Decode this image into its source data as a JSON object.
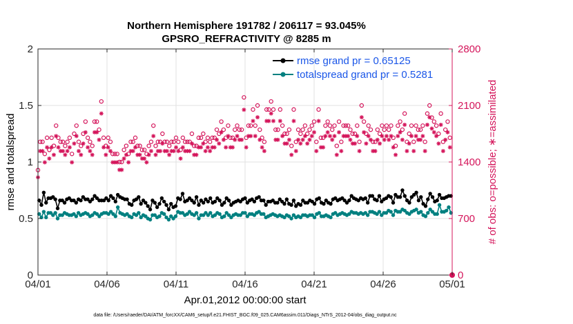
{
  "chart_data": {
    "type": "line",
    "title_line1": "Northern Hemisphere 191782 / 206117 = 93.045%",
    "title_line2": "GPSRO_REFRACTIVITY @ 8285 m",
    "ylabel_left": "rmse and totalspread",
    "ylabel_right": "# of obs: o=possible; ∗=assimilated",
    "xlabel": "Apr.01,2012 00:00:00 start",
    "ylim_left": [
      0,
      2
    ],
    "ylim_right": [
      0,
      2800
    ],
    "xlim": [
      0,
      30
    ],
    "yticks_left": [
      0,
      0.5,
      1,
      1.5,
      2
    ],
    "ytick_labels_left": [
      "0",
      "0.5",
      "1",
      "1.5",
      "2"
    ],
    "yticks_right": [
      0,
      700,
      1400,
      2100,
      2800
    ],
    "ytick_labels_right": [
      "0",
      "700",
      "1400",
      "2100",
      "2800"
    ],
    "xticks": [
      0,
      5,
      10,
      15,
      20,
      25,
      30
    ],
    "xtick_labels": [
      "04/01",
      "04/06",
      "04/11",
      "04/16",
      "04/21",
      "04/26",
      "05/01"
    ],
    "footnote": "data file: /Users/raeder/DAI/ATM_forcXX/CAM6_setup/f.e21.FHIST_BGC.f09_025.CAM6assim.011/Diags_NTrS_2012-04/obs_diag_output.nc",
    "colors": {
      "rmse": "#000000",
      "totalspread": "#008080",
      "obs": "#d4145a",
      "legend_text": "#1a56e8",
      "right_axis": "#d4145a"
    },
    "series": [
      {
        "name": "rmse grand pr = 0.65125",
        "marker": "circle",
        "values": [
          0.66,
          0.62,
          0.73,
          0.64,
          0.68,
          0.68,
          0.69,
          0.67,
          0.59,
          0.66,
          0.66,
          0.64,
          0.67,
          0.68,
          0.66,
          0.66,
          0.64,
          0.67,
          0.66,
          0.69,
          0.67,
          0.67,
          0.65,
          0.67,
          0.7,
          0.68,
          0.66,
          0.66,
          0.66,
          0.68,
          0.66,
          0.7,
          0.68,
          0.65,
          0.71,
          0.69,
          0.68,
          0.67,
          0.67,
          0.63,
          0.62,
          0.66,
          0.67,
          0.69,
          0.63,
          0.66,
          0.64,
          0.61,
          0.58,
          0.66,
          0.64,
          0.6,
          0.63,
          0.68,
          0.65,
          0.62,
          0.58,
          0.63,
          0.6,
          0.61,
          0.68,
          0.67,
          0.72,
          0.65,
          0.66,
          0.68,
          0.66,
          0.64,
          0.69,
          0.62,
          0.66,
          0.64,
          0.67,
          0.65,
          0.68,
          0.64,
          0.65,
          0.68,
          0.66,
          0.62,
          0.64,
          0.68,
          0.66,
          0.62,
          0.64,
          0.65,
          0.66,
          0.65,
          0.67,
          0.68,
          0.64,
          0.66,
          0.67,
          0.65,
          0.68,
          0.69,
          0.66,
          0.66,
          0.62,
          0.65,
          0.65,
          0.66,
          0.64,
          0.64,
          0.67,
          0.65,
          0.63,
          0.67,
          0.63,
          0.62,
          0.66,
          0.61,
          0.63,
          0.62,
          0.66,
          0.64,
          0.64,
          0.66,
          0.65,
          0.63,
          0.67,
          0.68,
          0.64,
          0.63,
          0.66,
          0.64,
          0.63,
          0.67,
          0.68,
          0.66,
          0.67,
          0.68,
          0.66,
          0.64,
          0.66,
          0.7,
          0.68,
          0.67,
          0.66,
          0.68,
          0.67,
          0.68,
          0.64,
          0.7,
          0.7,
          0.67,
          0.66,
          0.7,
          0.65,
          0.67,
          0.68,
          0.7,
          0.69,
          0.64,
          0.71,
          0.69,
          0.69,
          0.75,
          0.7,
          0.66,
          0.64,
          0.69,
          0.71,
          0.73,
          0.66,
          0.69,
          0.63,
          0.61,
          0.67,
          0.72,
          0.69,
          0.65,
          0.66,
          0.71,
          0.68,
          0.68,
          0.69,
          0.7,
          0.7
        ]
      },
      {
        "name": "totalspread grand pr = 0.5281",
        "marker": "circle",
        "values": [
          0.54,
          0.51,
          0.56,
          0.51,
          0.55,
          0.55,
          0.53,
          0.55,
          0.5,
          0.53,
          0.53,
          0.55,
          0.54,
          0.53,
          0.53,
          0.54,
          0.52,
          0.55,
          0.53,
          0.54,
          0.55,
          0.54,
          0.52,
          0.53,
          0.55,
          0.54,
          0.52,
          0.54,
          0.55,
          0.55,
          0.54,
          0.56,
          0.54,
          0.52,
          0.6,
          0.55,
          0.54,
          0.53,
          0.54,
          0.52,
          0.51,
          0.54,
          0.53,
          0.55,
          0.51,
          0.53,
          0.52,
          0.5,
          0.49,
          0.53,
          0.53,
          0.51,
          0.52,
          0.55,
          0.54,
          0.51,
          0.49,
          0.52,
          0.5,
          0.52,
          0.56,
          0.55,
          0.55,
          0.53,
          0.54,
          0.56,
          0.54,
          0.53,
          0.55,
          0.5,
          0.53,
          0.53,
          0.55,
          0.53,
          0.55,
          0.52,
          0.53,
          0.55,
          0.54,
          0.51,
          0.52,
          0.55,
          0.53,
          0.51,
          0.53,
          0.54,
          0.53,
          0.53,
          0.55,
          0.55,
          0.52,
          0.54,
          0.54,
          0.53,
          0.55,
          0.56,
          0.54,
          0.54,
          0.51,
          0.52,
          0.53,
          0.54,
          0.53,
          0.52,
          0.53,
          0.52,
          0.51,
          0.53,
          0.52,
          0.5,
          0.53,
          0.51,
          0.52,
          0.51,
          0.53,
          0.53,
          0.52,
          0.53,
          0.53,
          0.51,
          0.54,
          0.55,
          0.52,
          0.52,
          0.53,
          0.52,
          0.51,
          0.54,
          0.55,
          0.53,
          0.54,
          0.55,
          0.54,
          0.53,
          0.54,
          0.56,
          0.55,
          0.55,
          0.54,
          0.55,
          0.54,
          0.55,
          0.53,
          0.56,
          0.56,
          0.55,
          0.54,
          0.56,
          0.53,
          0.55,
          0.55,
          0.57,
          0.56,
          0.53,
          0.57,
          0.56,
          0.56,
          0.58,
          0.57,
          0.55,
          0.54,
          0.56,
          0.57,
          0.58,
          0.55,
          0.56,
          0.53,
          0.52,
          0.55,
          0.58,
          0.56,
          0.54,
          0.54,
          0.62,
          0.56,
          0.56,
          0.57,
          0.6,
          0.55
        ]
      }
    ],
    "obs_possible": [
      1300,
      1650,
      1650,
      1500,
      1700,
      1550,
      1700,
      1600,
      1850,
      1700,
      1650,
      1650,
      1600,
      1650,
      1700,
      1500,
      1750,
      1850,
      1650,
      1600,
      1750,
      1900,
      1700,
      1650,
      1600,
      1900,
      1900,
      1800,
      2150,
      1700,
      1600,
      1700,
      1650,
      1500,
      1500,
      1500,
      1400,
      1400,
      1550,
      1600,
      1500,
      1650,
      1650,
      1700,
      1600,
      1600,
      1550,
      1550,
      1500,
      1600,
      1650,
      1850,
      1600,
      1650,
      1650,
      1750,
      1650,
      1650,
      1600,
      1650,
      1650,
      1700,
      1650,
      1550,
      1700,
      1650,
      1650,
      1650,
      1750,
      1600,
      1600,
      1700,
      1700,
      1750,
      1650,
      1700,
      1650,
      1700,
      1700,
      1800,
      1750,
      1900,
      1800,
      1700,
      1850,
      1700,
      1700,
      1800,
      1850,
      1800,
      1800,
      2200,
      1700,
      1850,
      1850,
      2050,
      1850,
      2100,
      1800,
      1700,
      1650,
      2050,
      2050,
      2150,
      2050,
      1800,
      1800,
      2050,
      1850,
      1750,
      1750,
      1800,
      1600,
      2050,
      1650,
      1800,
      1750,
      1800,
      1850,
      1750,
      1800,
      1850,
      1900,
      1650,
      2050,
      1700,
      1700,
      1850,
      1900,
      1850,
      1800,
      1850,
      1600,
      1900,
      1650,
      1850,
      1850,
      1850,
      1800,
      1750,
      1750,
      1850,
      1650,
      2100,
      1900,
      1750,
      1850,
      1800,
      1650,
      1650,
      1800,
      1750,
      1850,
      1800,
      1850,
      1800,
      1850,
      1700,
      1600,
      1850,
      1900,
      1800,
      2000,
      1650,
      1750,
      1850,
      1650,
      1850,
      1800,
      1800,
      1850,
      1650,
      2000,
      2100,
      1950,
      1900,
      1850,
      1750,
      2000,
      1650,
      1800,
      1900,
      1700,
      0
    ]
  }
}
